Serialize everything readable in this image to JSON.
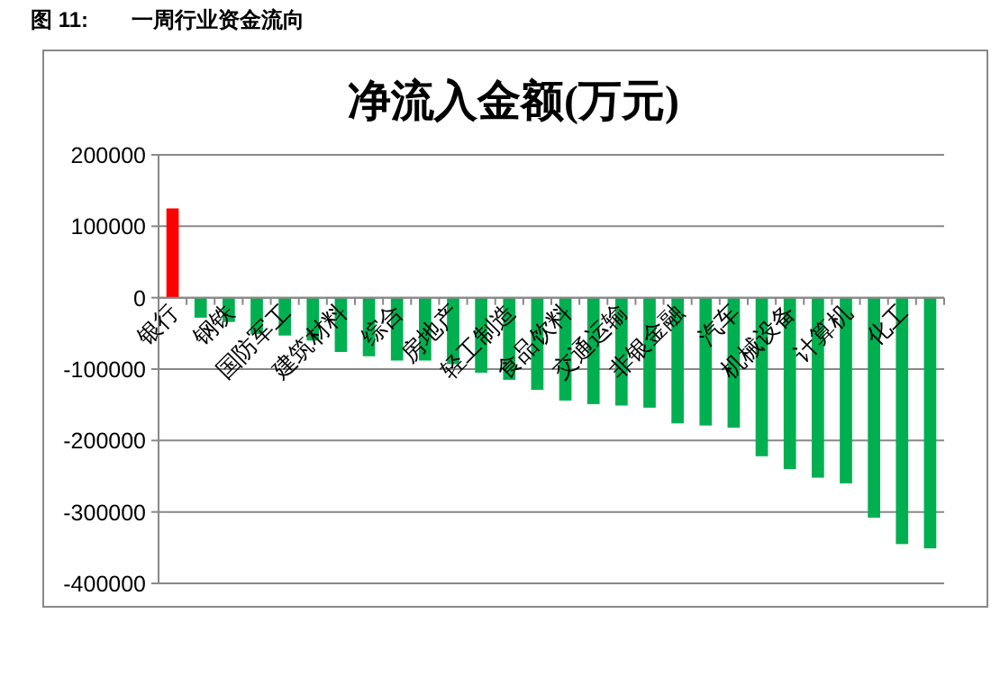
{
  "chart_data": {
    "type": "bar",
    "title": "净流入金额(万元)",
    "annotations": [
      "图 11:",
      "一周行业资金流向"
    ],
    "categories": [
      "银行",
      null,
      "钢铁",
      null,
      "国防军工",
      null,
      "建筑材料",
      null,
      "综合",
      null,
      "房地产",
      null,
      "轻工制造",
      null,
      "食品饮料",
      null,
      "交通运输",
      null,
      "非银金融",
      null,
      "汽车",
      null,
      "机械设备",
      null,
      "计算机",
      null,
      "化工",
      null
    ],
    "values": [
      125000,
      -28000,
      -34000,
      -51000,
      -53000,
      -60000,
      -76000,
      -82000,
      -88000,
      -88000,
      -93000,
      -105000,
      -115000,
      -129000,
      -144000,
      -149000,
      -151000,
      -154000,
      -176000,
      -179000,
      -182000,
      -222000,
      -240000,
      -252000,
      -260000,
      -308000,
      -345000,
      -351000
    ],
    "colors": [
      "#ff0000",
      "#00b050",
      "#00b050",
      "#00b050",
      "#00b050",
      "#00b050",
      "#00b050",
      "#00b050",
      "#00b050",
      "#00b050",
      "#00b050",
      "#00b050",
      "#00b050",
      "#00b050",
      "#00b050",
      "#00b050",
      "#00b050",
      "#00b050",
      "#00b050",
      "#00b050",
      "#00b050",
      "#00b050",
      "#00b050",
      "#00b050",
      "#00b050",
      "#00b050",
      "#00b050",
      "#00b050"
    ],
    "ylim": [
      -400000,
      200000
    ],
    "yticks": [
      -400000,
      -300000,
      -200000,
      -100000,
      0,
      100000,
      200000
    ],
    "grid": "y"
  }
}
